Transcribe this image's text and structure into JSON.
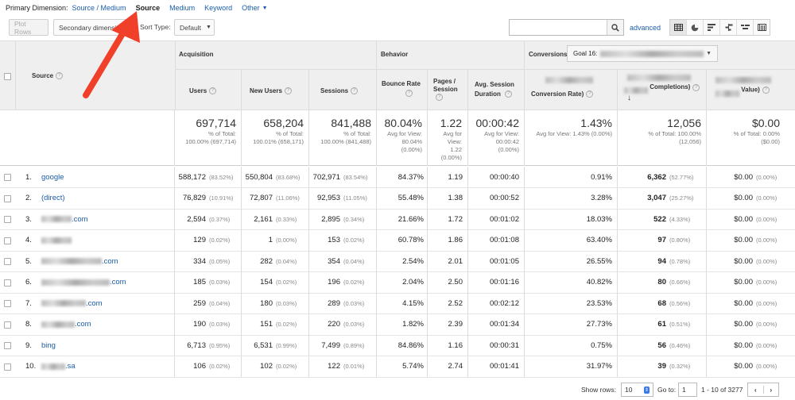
{
  "primary_dimension": {
    "label": "Primary Dimension:",
    "options": [
      "Source / Medium",
      "Source",
      "Medium",
      "Keyword",
      "Other"
    ],
    "active": "Source"
  },
  "toolbar": {
    "plot_rows": "Plot Rows",
    "secondary_dimension": "Secondary dimension",
    "sort_type_label": "Sort Type:",
    "sort_type_value": "Default",
    "search_value": "",
    "advanced": "advanced"
  },
  "headers": {
    "source": "Source",
    "acquisition": "Acquisition",
    "behavior": "Behavior",
    "conversions": "Conversions",
    "goal_select": "Goal 16:",
    "users": "Users",
    "new_users": "New Users",
    "sessions": "Sessions",
    "bounce_rate": "Bounce Rate",
    "pages_session": "Pages / Session",
    "avg_session": "Avg. Session Duration",
    "conv_rate": "Conversion Rate)",
    "completions": "Completions)",
    "value": "Value)"
  },
  "totals": {
    "users": {
      "big": "697,714",
      "s1": "% of Total:",
      "s2": "100.00% (697,714)"
    },
    "new_users": {
      "big": "658,204",
      "s1": "% of Total:",
      "s2": "100.01% (658,171)"
    },
    "sessions": {
      "big": "841,488",
      "s1": "% of Total:",
      "s2": "100.00% (841,488)"
    },
    "bounce": {
      "big": "80.04%",
      "s1": "Avg for View:",
      "s2": "80.04%",
      "s3": "(0.00%)"
    },
    "pages": {
      "big": "1.22",
      "s1": "Avg for",
      "s2": "View:",
      "s3": "1.22",
      "s4": "(0.00%)"
    },
    "duration": {
      "big": "00:00:42",
      "s1": "Avg for View:",
      "s2": "00:00:42",
      "s3": "(0.00%)"
    },
    "conv_rate": {
      "big": "1.43%",
      "s1": "Avg for View: 1.43% (0.00%)"
    },
    "completions": {
      "big": "12,056",
      "s1": "% of Total: 100.00%",
      "s2": "(12,056)"
    },
    "value": {
      "big": "$0.00",
      "s1": "% of Total: 0.00%",
      "s2": "($0.00)"
    }
  },
  "rows": [
    {
      "idx": "1.",
      "source": "google",
      "users": "588,172",
      "users_pct": "(83.52%)",
      "new_users": "550,804",
      "new_users_pct": "(83.68%)",
      "sessions": "702,971",
      "sessions_pct": "(83.54%)",
      "bounce": "84.37%",
      "pages": "1.19",
      "duration": "00:00:40",
      "conv_rate": "0.91%",
      "completions": "6,362",
      "completions_pct": "(52.77%)",
      "value": "$0.00",
      "value_pct": "(0.00%)"
    },
    {
      "idx": "2.",
      "source": "(direct)",
      "users": "76,829",
      "users_pct": "(10.91%)",
      "new_users": "72,807",
      "new_users_pct": "(11.06%)",
      "sessions": "92,953",
      "sessions_pct": "(11.05%)",
      "bounce": "55.48%",
      "pages": "1.38",
      "duration": "00:00:52",
      "conv_rate": "3.28%",
      "completions": "3,047",
      "completions_pct": "(25.27%)",
      "value": "$0.00",
      "value_pct": "(0.00%)"
    },
    {
      "idx": "3.",
      "source": ".com",
      "blur": 38,
      "users": "2,594",
      "users_pct": "(0.37%)",
      "new_users": "2,161",
      "new_users_pct": "(0.33%)",
      "sessions": "2,895",
      "sessions_pct": "(0.34%)",
      "bounce": "21.66%",
      "pages": "1.72",
      "duration": "00:01:02",
      "conv_rate": "18.03%",
      "completions": "522",
      "completions_pct": "(4.33%)",
      "value": "$0.00",
      "value_pct": "(0.00%)"
    },
    {
      "idx": "4.",
      "source": "",
      "blur": 38,
      "users": "129",
      "users_pct": "(0.02%)",
      "new_users": "1",
      "new_users_pct": "(0.00%)",
      "sessions": "153",
      "sessions_pct": "(0.02%)",
      "bounce": "60.78%",
      "pages": "1.86",
      "duration": "00:01:08",
      "conv_rate": "63.40%",
      "completions": "97",
      "completions_pct": "(0.80%)",
      "value": "$0.00",
      "value_pct": "(0.00%)"
    },
    {
      "idx": "5.",
      "source": ".com",
      "blur": 76,
      "users": "334",
      "users_pct": "(0.05%)",
      "new_users": "282",
      "new_users_pct": "(0.04%)",
      "sessions": "354",
      "sessions_pct": "(0.04%)",
      "bounce": "2.54%",
      "pages": "2.01",
      "duration": "00:01:05",
      "conv_rate": "26.55%",
      "completions": "94",
      "completions_pct": "(0.78%)",
      "value": "$0.00",
      "value_pct": "(0.00%)"
    },
    {
      "idx": "6.",
      "source": ".com",
      "blur": 86,
      "users": "185",
      "users_pct": "(0.03%)",
      "new_users": "154",
      "new_users_pct": "(0.02%)",
      "sessions": "196",
      "sessions_pct": "(0.02%)",
      "bounce": "2.04%",
      "pages": "2.50",
      "duration": "00:01:16",
      "conv_rate": "40.82%",
      "completions": "80",
      "completions_pct": "(0.66%)",
      "value": "$0.00",
      "value_pct": "(0.00%)"
    },
    {
      "idx": "7.",
      "source": ".com",
      "blur": 56,
      "users": "259",
      "users_pct": "(0.04%)",
      "new_users": "180",
      "new_users_pct": "(0.03%)",
      "sessions": "289",
      "sessions_pct": "(0.03%)",
      "bounce": "4.15%",
      "pages": "2.52",
      "duration": "00:02:12",
      "conv_rate": "23.53%",
      "completions": "68",
      "completions_pct": "(0.56%)",
      "value": "$0.00",
      "value_pct": "(0.00%)"
    },
    {
      "idx": "8.",
      "source": ".com",
      "blur": 42,
      "users": "190",
      "users_pct": "(0.03%)",
      "new_users": "151",
      "new_users_pct": "(0.02%)",
      "sessions": "220",
      "sessions_pct": "(0.03%)",
      "bounce": "1.82%",
      "pages": "2.39",
      "duration": "00:01:34",
      "conv_rate": "27.73%",
      "completions": "61",
      "completions_pct": "(0.51%)",
      "value": "$0.00",
      "value_pct": "(0.00%)"
    },
    {
      "idx": "9.",
      "source": "bing",
      "users": "6,713",
      "users_pct": "(0.95%)",
      "new_users": "6,531",
      "new_users_pct": "(0.99%)",
      "sessions": "7,499",
      "sessions_pct": "(0.89%)",
      "bounce": "84.86%",
      "pages": "1.16",
      "duration": "00:00:31",
      "conv_rate": "0.75%",
      "completions": "56",
      "completions_pct": "(0.46%)",
      "value": "$0.00",
      "value_pct": "(0.00%)"
    },
    {
      "idx": "10.",
      "source": ".sa",
      "blur": 30,
      "users": "106",
      "users_pct": "(0.02%)",
      "new_users": "102",
      "new_users_pct": "(0.02%)",
      "sessions": "122",
      "sessions_pct": "(0.01%)",
      "bounce": "5.74%",
      "pages": "2.74",
      "duration": "00:01:41",
      "conv_rate": "31.97%",
      "completions": "39",
      "completions_pct": "(0.32%)",
      "value": "$0.00",
      "value_pct": "(0.00%)"
    }
  ],
  "footer": {
    "show_rows_label": "Show rows:",
    "show_rows_value": "10",
    "goto_label": "Go to:",
    "goto_value": "1",
    "range": "1 - 10 of 3277"
  },
  "colors": {
    "link": "#1a5dab",
    "arrow": "#f0402a",
    "header_bg": "#efefef"
  }
}
